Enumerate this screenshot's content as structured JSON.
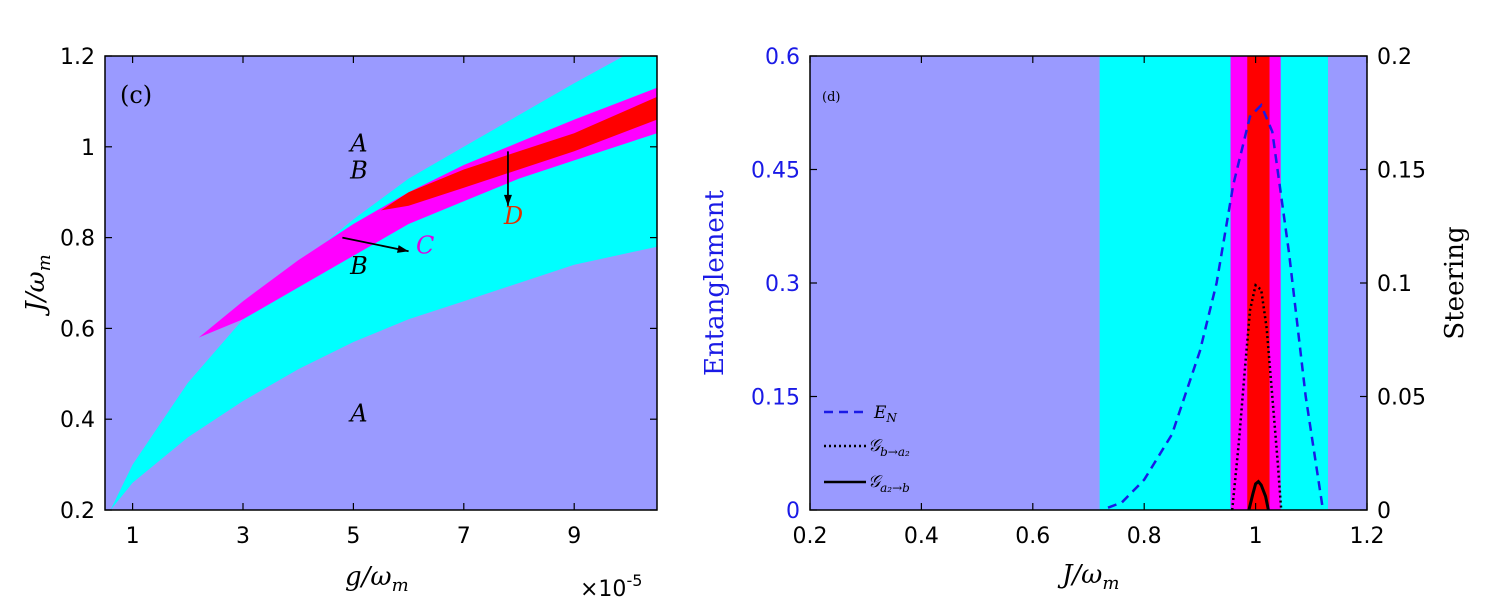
{
  "colors": {
    "region_A": "#9a9aff",
    "region_B": "#00ffff",
    "region_C": "#ff00ff",
    "region_D": "#ff0000",
    "entanglement_axis": "#1a1ae6",
    "black": "#000000"
  },
  "chart_data": [
    {
      "type": "heatmap",
      "panel_label": "(c)",
      "xlabel": "g/ω",
      "xlabel_sub": "m",
      "ylabel": "J/ω",
      "ylabel_sub": "m",
      "x_multiplier_text": "×10",
      "x_multiplier_exp": "-5",
      "xlim": [
        0.5,
        10.5
      ],
      "ylim": [
        0.2,
        1.2
      ],
      "xticks": [
        1,
        3,
        5,
        7,
        9
      ],
      "yticks": [
        0.2,
        0.4,
        0.6,
        0.8,
        1,
        1.2
      ],
      "xtick_labels": [
        "1",
        "3",
        "5",
        "7",
        "9"
      ],
      "ytick_labels": [
        "0.2",
        "0.4",
        "0.6",
        "0.8",
        "1",
        "1.2"
      ],
      "regions": {
        "B_upper": [
          [
            0.6,
            0.2
          ],
          [
            1,
            0.3
          ],
          [
            2,
            0.48
          ],
          [
            3,
            0.62
          ],
          [
            4,
            0.74
          ],
          [
            5,
            0.84
          ],
          [
            6,
            0.93
          ],
          [
            7,
            1.0
          ],
          [
            8,
            1.07
          ],
          [
            9,
            1.14
          ],
          [
            9.9,
            1.2
          ]
        ],
        "B_lower": [
          [
            0.6,
            0.2
          ],
          [
            1,
            0.26
          ],
          [
            2,
            0.36
          ],
          [
            3,
            0.44
          ],
          [
            4,
            0.51
          ],
          [
            5,
            0.57
          ],
          [
            6,
            0.62
          ],
          [
            7,
            0.66
          ],
          [
            8,
            0.7
          ],
          [
            9,
            0.74
          ],
          [
            10.5,
            0.78
          ]
        ],
        "C_upper": [
          [
            2.2,
            0.58
          ],
          [
            3,
            0.66
          ],
          [
            4,
            0.75
          ],
          [
            5,
            0.83
          ],
          [
            6,
            0.9
          ],
          [
            7,
            0.96
          ],
          [
            8,
            1.01
          ],
          [
            9,
            1.06
          ],
          [
            10.5,
            1.13
          ]
        ],
        "C_lower": [
          [
            2.2,
            0.58
          ],
          [
            3,
            0.62
          ],
          [
            4,
            0.69
          ],
          [
            5,
            0.76
          ],
          [
            6,
            0.83
          ],
          [
            7,
            0.88
          ],
          [
            8,
            0.93
          ],
          [
            9,
            0.97
          ],
          [
            10.5,
            1.03
          ]
        ],
        "D_upper": [
          [
            5.5,
            0.86
          ],
          [
            6,
            0.9
          ],
          [
            7,
            0.95
          ],
          [
            8,
            0.99
          ],
          [
            9,
            1.03
          ],
          [
            10.5,
            1.11
          ]
        ],
        "D_lower": [
          [
            5.5,
            0.86
          ],
          [
            6,
            0.87
          ],
          [
            7,
            0.91
          ],
          [
            8,
            0.95
          ],
          [
            9,
            0.99
          ],
          [
            10.5,
            1.06
          ]
        ]
      },
      "annotations": [
        {
          "text": "A",
          "x": 5.1,
          "y": 0.99,
          "color": "#000000"
        },
        {
          "text": "B",
          "x": 5.1,
          "y": 0.93,
          "color": "#000000"
        },
        {
          "text": "B",
          "x": 5.1,
          "y": 0.72,
          "color": "#000000"
        },
        {
          "text": "A",
          "x": 5.1,
          "y": 0.395,
          "color": "#000000"
        },
        {
          "text": "C",
          "x": 6.3,
          "y": 0.765,
          "color": "#e000e0"
        },
        {
          "text": "D",
          "x": 7.9,
          "y": 0.83,
          "color": "#e03000"
        }
      ],
      "arrows": [
        {
          "from": [
            4.8,
            0.8
          ],
          "to": [
            6.0,
            0.77
          ]
        },
        {
          "from": [
            7.8,
            0.99
          ],
          "to": [
            7.8,
            0.87
          ]
        }
      ]
    },
    {
      "type": "line",
      "panel_label": "(d)",
      "xlabel": "J/ω",
      "xlabel_sub": "m",
      "ylabel_left": "Entanglement",
      "ylabel_right": "Steering",
      "xlim": [
        0.2,
        1.2
      ],
      "ylim_left": [
        0,
        0.6
      ],
      "ylim_right": [
        0,
        0.2
      ],
      "xticks": [
        0.2,
        0.4,
        0.6,
        0.8,
        1,
        1.2
      ],
      "xtick_labels": [
        "0.2",
        "0.4",
        "0.6",
        "0.8",
        "1",
        "1.2"
      ],
      "yticks_left": [
        0,
        0.15,
        0.3,
        0.45,
        0.6
      ],
      "ytick_labels_left": [
        "0",
        "0.15",
        "0.3",
        "0.45",
        "0.6"
      ],
      "yticks_right": [
        0,
        0.05,
        0.1,
        0.15,
        0.2
      ],
      "ytick_labels_right": [
        "0",
        "0.05",
        "0.1",
        "0.15",
        "0.2"
      ],
      "bands": [
        {
          "x0": 0.2,
          "x1": 1.2,
          "region": "A"
        },
        {
          "x0": 0.72,
          "x1": 1.13,
          "region": "B"
        },
        {
          "x0": 0.955,
          "x1": 1.045,
          "region": "C"
        },
        {
          "x0": 0.985,
          "x1": 1.025,
          "region": "D"
        }
      ],
      "series": [
        {
          "name": "E",
          "sub": "N",
          "axis": "left",
          "style": "dashed",
          "color": "#1a1ae6",
          "x": [
            0.735,
            0.76,
            0.8,
            0.85,
            0.9,
            0.93,
            0.96,
            0.99,
            1.01,
            1.03,
            1.06,
            1.09,
            1.12
          ],
          "y": [
            0.003,
            0.01,
            0.04,
            0.1,
            0.21,
            0.3,
            0.43,
            0.52,
            0.535,
            0.5,
            0.34,
            0.15,
            0.005
          ]
        },
        {
          "name": "𝒢",
          "sub": "b→a₂",
          "axis": "right",
          "style": "dotted",
          "color": "#000000",
          "x": [
            0.958,
            0.97,
            0.98,
            0.99,
            1.0,
            1.01,
            1.02,
            1.03,
            1.04,
            1.046
          ],
          "y": [
            0.0,
            0.03,
            0.06,
            0.088,
            0.099,
            0.097,
            0.08,
            0.05,
            0.02,
            0.0
          ]
        },
        {
          "name": "𝒢",
          "sub": "a₂→b",
          "axis": "right",
          "style": "solid",
          "color": "#000000",
          "x": [
            0.988,
            0.995,
            1.0,
            1.005,
            1.01,
            1.018,
            1.023
          ],
          "y": [
            0.0,
            0.007,
            0.0115,
            0.0125,
            0.011,
            0.006,
            0.0
          ]
        }
      ]
    }
  ]
}
